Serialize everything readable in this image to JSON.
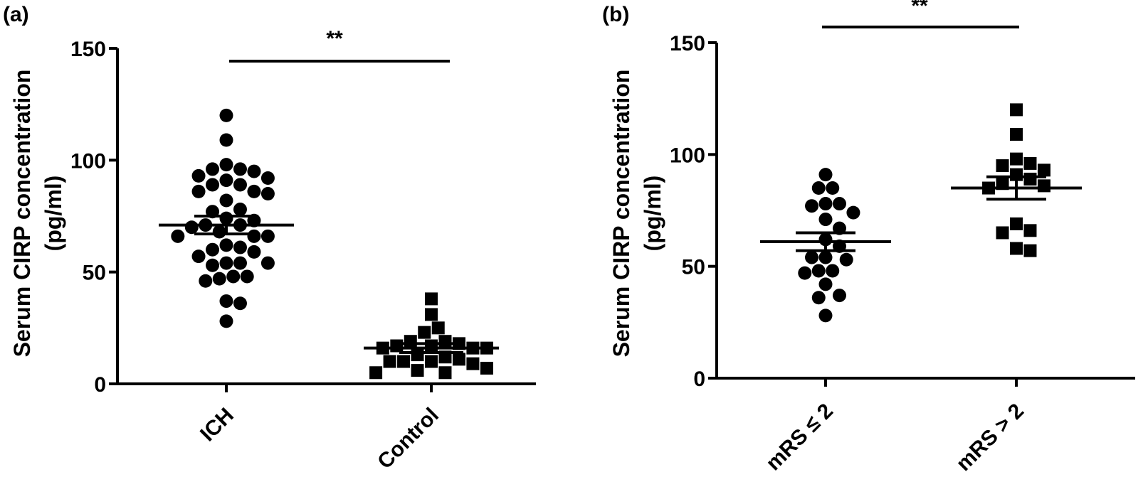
{
  "chart_data": [
    {
      "type": "scatter",
      "panel_label": "(a)",
      "ylabel_line1": "Serum CIRP concentration",
      "ylabel_line2": "(pg/ml)",
      "ylim": [
        0,
        150
      ],
      "yticks": [
        "0",
        "50",
        "100",
        "150"
      ],
      "categories": [
        "ICH",
        "Control"
      ],
      "significance": "**",
      "series": [
        {
          "marker": "circle",
          "category": "ICH",
          "mean": 71,
          "sem_upper": 75,
          "sem_lower": 67,
          "values": [
            120,
            109,
            98,
            96,
            96,
            95,
            93,
            92,
            91,
            89,
            89,
            86,
            86,
            85,
            82,
            78,
            77,
            74,
            73,
            71,
            71,
            70,
            68,
            66,
            66,
            66,
            62,
            61,
            60,
            59,
            57,
            54,
            54,
            54,
            53,
            48,
            48,
            47,
            46,
            37,
            36,
            28
          ]
        },
        {
          "marker": "square",
          "category": "Control",
          "mean": 16,
          "sem_upper": 18,
          "sem_lower": 14,
          "values": [
            38,
            31,
            25,
            23,
            19,
            19,
            18,
            17,
            17,
            16,
            16,
            16,
            16,
            15,
            15,
            14,
            13,
            13,
            12,
            11,
            10,
            10,
            10,
            9,
            7,
            6,
            5,
            5
          ]
        }
      ]
    },
    {
      "type": "scatter",
      "panel_label": "(b)",
      "ylabel_line1": "Serum CIRP concentration",
      "ylabel_line2": "(pg/ml)",
      "ylim": [
        0,
        150
      ],
      "yticks": [
        "0",
        "50",
        "100",
        "150"
      ],
      "categories": [
        "mRS ≤ 2",
        "mRS > 2"
      ],
      "significance": "**",
      "series": [
        {
          "marker": "circle",
          "category": "mRS ≤ 2",
          "mean": 61,
          "sem_upper": 65,
          "sem_lower": 57,
          "values": [
            91,
            85,
            85,
            78,
            78,
            77,
            74,
            71,
            67,
            62,
            59,
            54,
            54,
            53,
            48,
            48,
            47,
            42,
            37,
            36,
            28
          ]
        },
        {
          "marker": "square",
          "category": "mRS > 2",
          "mean": 85,
          "sem_upper": 90,
          "sem_lower": 80,
          "values": [
            120,
            109,
            98,
            96,
            95,
            93,
            91,
            89,
            87,
            86,
            85,
            69,
            66,
            65,
            58,
            57
          ]
        }
      ]
    }
  ]
}
